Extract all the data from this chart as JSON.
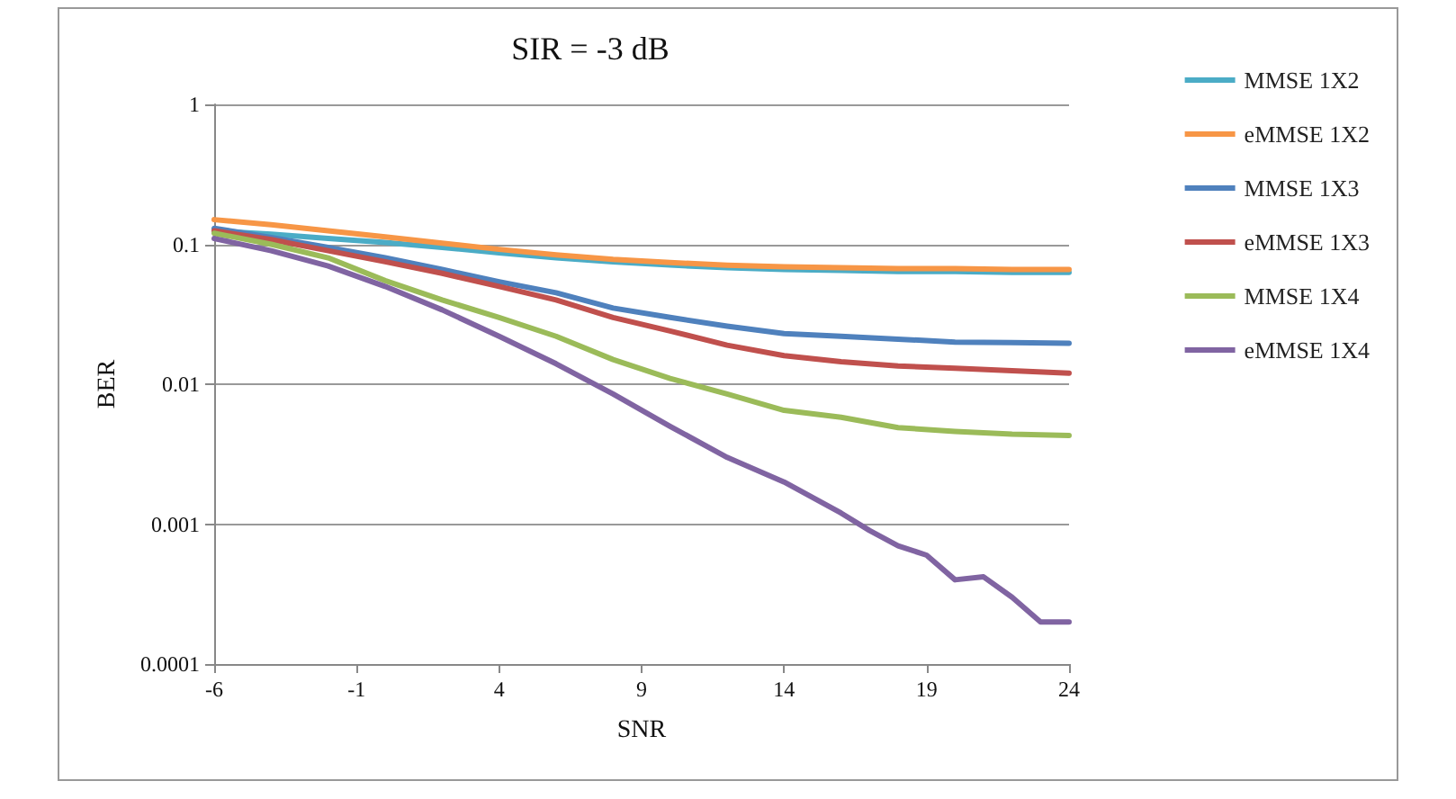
{
  "chart_data": {
    "type": "line",
    "title": "SIR = -3 dB",
    "xlabel": "SNR",
    "ylabel": "BER",
    "log": "y",
    "grid": "y",
    "legend": "right",
    "marker": "none",
    "line_style": "solid",
    "x": [
      -6,
      -4,
      -2,
      0,
      2,
      4,
      6,
      8,
      10,
      12,
      14,
      16,
      18,
      20,
      22,
      24
    ],
    "xlim": [
      -6,
      24
    ],
    "xticks": [
      -6,
      -1,
      4,
      9,
      14,
      19,
      24
    ],
    "ylim": [
      0.0001,
      1
    ],
    "yticks": [
      0.0001,
      0.001,
      0.01,
      0.1,
      1
    ],
    "series": [
      {
        "name": "MMSE 1X2",
        "color": "#4bacc6",
        "values": [
          0.125,
          0.118,
          0.11,
          0.103,
          0.095,
          0.087,
          0.08,
          0.075,
          0.071,
          0.068,
          0.066,
          0.065,
          0.064,
          0.064,
          0.063,
          0.063
        ]
      },
      {
        "name": "eMMSE 1X2",
        "color": "#f79646",
        "values": [
          0.15,
          0.138,
          0.125,
          0.113,
          0.102,
          0.092,
          0.084,
          0.078,
          0.074,
          0.071,
          0.069,
          0.068,
          0.067,
          0.067,
          0.066,
          0.066
        ]
      },
      {
        "name": "MMSE 1X3",
        "color": "#4f81bd",
        "values": [
          0.13,
          0.112,
          0.095,
          0.08,
          0.066,
          0.054,
          0.045,
          0.035,
          0.03,
          0.026,
          0.023,
          0.022,
          0.021,
          0.02,
          0.0198,
          0.0196
        ]
      },
      {
        "name": "eMMSE 1X3",
        "color": "#c0504d",
        "values": [
          0.125,
          0.108,
          0.09,
          0.075,
          0.062,
          0.05,
          0.04,
          0.03,
          0.024,
          0.019,
          0.016,
          0.0145,
          0.0135,
          0.013,
          0.0125,
          0.012
        ]
      },
      {
        "name": "MMSE 1X4",
        "color": "#9bbb59",
        "values": [
          0.12,
          0.1,
          0.08,
          0.055,
          0.04,
          0.03,
          0.022,
          0.015,
          0.011,
          0.0085,
          0.0065,
          0.0058,
          0.0049,
          0.0046,
          0.0044,
          0.0043
        ]
      },
      {
        "name": "eMMSE 1X4",
        "color": "#8064a2",
        "x": [
          -6,
          -4,
          -2,
          0,
          2,
          4,
          6,
          8,
          10,
          12,
          14,
          16,
          17,
          18,
          19,
          20,
          21,
          22,
          23,
          24
        ],
        "values": [
          0.11,
          0.09,
          0.07,
          0.05,
          0.034,
          0.022,
          0.014,
          0.0085,
          0.005,
          0.003,
          0.002,
          0.0012,
          0.0009,
          0.0007,
          0.0006,
          0.0004,
          0.00042,
          0.0003,
          0.0002,
          0.0002
        ]
      }
    ]
  }
}
